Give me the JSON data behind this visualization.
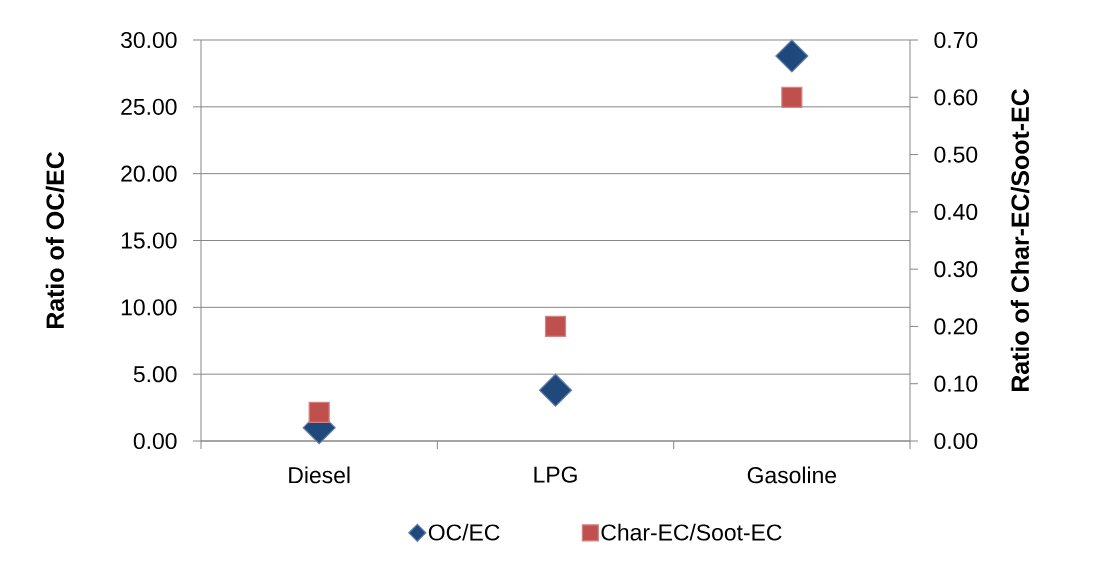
{
  "chart_data": {
    "type": "scatter",
    "categories": [
      "Diesel",
      "LPG",
      "Gasoline"
    ],
    "ylabel": "Ratio of OC/EC",
    "y2label": "Ratio of Char-EC/Soot-EC",
    "ylim": [
      0,
      30
    ],
    "yticks": [
      {
        "value": 0,
        "label": "0.00"
      },
      {
        "value": 5,
        "label": "5.00"
      },
      {
        "value": 10,
        "label": "10.00"
      },
      {
        "value": 15,
        "label": "15.00"
      },
      {
        "value": 20,
        "label": "20.00"
      },
      {
        "value": 25,
        "label": "25.00"
      },
      {
        "value": 30,
        "label": "30.00"
      }
    ],
    "y2lim": [
      0,
      0.7
    ],
    "y2ticks": [
      {
        "value": 0,
        "label": "0.00"
      },
      {
        "value": 0.1,
        "label": "0.10"
      },
      {
        "value": 0.2,
        "label": "0.20"
      },
      {
        "value": 0.3,
        "label": "0.30"
      },
      {
        "value": 0.4,
        "label": "0.40"
      },
      {
        "value": 0.5,
        "label": "0.50"
      },
      {
        "value": 0.6,
        "label": "0.60"
      },
      {
        "value": 0.7,
        "label": "0.70"
      }
    ],
    "series": [
      {
        "name": "OC/EC",
        "color": "#1f497d",
        "marker": "diamond",
        "values": [
          1.0,
          3.8,
          28.8
        ]
      },
      {
        "name": "Char-EC/Soot-EC",
        "color": "#c0504d",
        "marker": "square",
        "axis": "y2",
        "values": [
          0.05,
          0.2,
          0.6
        ]
      }
    ],
    "grid": "y",
    "legend": "bottom"
  }
}
